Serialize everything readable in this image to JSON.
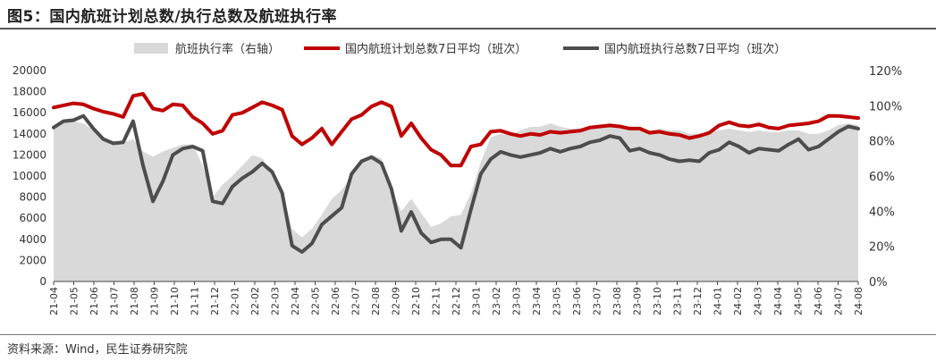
{
  "title": "图5：国内航班计划总数/执行总数及航班执行率",
  "source": "资料来源：Wind，民生证券研究院",
  "colors": {
    "area": "#d9d9d9",
    "plan": "#c00000",
    "exec": "#4d4d4d",
    "axis": "#444444"
  },
  "chart_data": {
    "type": "line",
    "legend_position": "top",
    "grid": false,
    "xlim": [
      "2021-04",
      "2024-08"
    ],
    "ylim_left": [
      0,
      20000
    ],
    "yticks_left": [
      "0",
      "2000",
      "4000",
      "6000",
      "8000",
      "10000",
      "12000",
      "14000",
      "16000",
      "18000",
      "20000"
    ],
    "ylim_right": [
      0,
      1.2
    ],
    "yticks_right": [
      "0%",
      "20%",
      "40%",
      "60%",
      "80%",
      "100%",
      "120%"
    ],
    "xticks": [
      "21-04",
      "21-05",
      "21-06",
      "21-07",
      "21-08",
      "21-09",
      "21-10",
      "21-11",
      "21-12",
      "22-01",
      "22-02",
      "22-03",
      "22-04",
      "22-05",
      "22-06",
      "22-07",
      "22-08",
      "22-09",
      "22-10",
      "22-11",
      "22-12",
      "23-01",
      "23-02",
      "23-03",
      "23-04",
      "23-05",
      "23-06",
      "23-07",
      "23-08",
      "23-09",
      "23-10",
      "23-11",
      "23-12",
      "24-01",
      "24-02",
      "24-03",
      "24-04",
      "24-05",
      "24-06",
      "24-07",
      "24-08"
    ],
    "x": [
      "21-04",
      "21-04b",
      "21-05",
      "21-05b",
      "21-06",
      "21-06b",
      "21-07",
      "21-07b",
      "21-08",
      "21-08b",
      "21-09",
      "21-09b",
      "21-10",
      "21-10b",
      "21-11",
      "21-11b",
      "21-12",
      "21-12b",
      "22-01",
      "22-01b",
      "22-02",
      "22-02b",
      "22-03",
      "22-03b",
      "22-04",
      "22-04b",
      "22-05",
      "22-05b",
      "22-06",
      "22-06b",
      "22-07",
      "22-07b",
      "22-08",
      "22-08b",
      "22-09",
      "22-09b",
      "22-10",
      "22-10b",
      "22-11",
      "22-11b",
      "22-12",
      "22-12b",
      "23-01",
      "23-01b",
      "23-02",
      "23-02b",
      "23-03",
      "23-03b",
      "23-04",
      "23-04b",
      "23-05",
      "23-05b",
      "23-06",
      "23-06b",
      "23-07",
      "23-07b",
      "23-08",
      "23-08b",
      "23-09",
      "23-09b",
      "23-10",
      "23-10b",
      "23-11",
      "23-11b",
      "23-12",
      "23-12b",
      "24-01",
      "24-01b",
      "24-02",
      "24-02b",
      "24-03",
      "24-03b",
      "24-04",
      "24-04b",
      "24-05",
      "24-05b",
      "24-06",
      "24-06b",
      "24-07",
      "24-07b",
      "24-08",
      "24-08b"
    ],
    "series": [
      {
        "name": "航班执行率（右轴）",
        "axis": "right",
        "style": "area",
        "values": [
          0.88,
          0.91,
          0.91,
          0.9,
          0.86,
          0.8,
          0.78,
          0.79,
          0.81,
          0.74,
          0.71,
          0.74,
          0.76,
          0.78,
          0.78,
          0.66,
          0.48,
          0.55,
          0.6,
          0.66,
          0.72,
          0.7,
          0.62,
          0.5,
          0.3,
          0.25,
          0.3,
          0.38,
          0.47,
          0.52,
          0.6,
          0.68,
          0.72,
          0.7,
          0.52,
          0.4,
          0.47,
          0.39,
          0.31,
          0.33,
          0.37,
          0.38,
          0.5,
          0.68,
          0.82,
          0.84,
          0.83,
          0.86,
          0.88,
          0.88,
          0.9,
          0.88,
          0.87,
          0.87,
          0.88,
          0.89,
          0.9,
          0.89,
          0.88,
          0.88,
          0.86,
          0.87,
          0.86,
          0.86,
          0.84,
          0.84,
          0.85,
          0.86,
          0.87,
          0.86,
          0.85,
          0.86,
          0.85,
          0.85,
          0.86,
          0.86,
          0.84,
          0.84,
          0.86,
          0.89,
          0.9,
          0.89
        ]
      },
      {
        "name": "国内航班计划总数7日平均（班次）",
        "axis": "left",
        "style": "line",
        "values": [
          16500,
          16700,
          16900,
          16800,
          16400,
          16100,
          15900,
          15600,
          17600,
          17800,
          16400,
          16200,
          16800,
          16700,
          15600,
          15000,
          14000,
          14300,
          15800,
          16000,
          16500,
          17000,
          16700,
          16300,
          13800,
          13000,
          13600,
          14500,
          13000,
          14200,
          15400,
          15800,
          16600,
          17000,
          16600,
          13800,
          15000,
          13600,
          12500,
          12000,
          11000,
          11000,
          12800,
          13000,
          14200,
          14300,
          14000,
          13800,
          14000,
          13900,
          14200,
          14100,
          14200,
          14300,
          14600,
          14700,
          14800,
          14700,
          14500,
          14500,
          14100,
          14200,
          14000,
          13900,
          13600,
          13800,
          14100,
          14800,
          15100,
          14800,
          14700,
          14900,
          14600,
          14500,
          14800,
          14900,
          15000,
          15200,
          15700,
          15700,
          15600,
          15500
        ]
      },
      {
        "name": "国内航班执行总数7日平均（班次）",
        "axis": "left",
        "style": "line",
        "values": [
          14600,
          15200,
          15300,
          15700,
          14500,
          13500,
          13100,
          13200,
          15200,
          11000,
          7600,
          9500,
          12000,
          12600,
          12800,
          12400,
          7600,
          7400,
          9000,
          9800,
          10400,
          11200,
          10400,
          8400,
          3400,
          2800,
          3600,
          5400,
          6200,
          7000,
          10200,
          11400,
          11800,
          11200,
          8800,
          4800,
          6600,
          4600,
          3700,
          4000,
          4000,
          3200,
          6800,
          10200,
          11600,
          12300,
          12000,
          11800,
          12000,
          12200,
          12600,
          12300,
          12600,
          12800,
          13200,
          13400,
          13800,
          13600,
          12400,
          12600,
          12200,
          12000,
          11600,
          11400,
          11500,
          11400,
          12200,
          12500,
          13200,
          12800,
          12200,
          12600,
          12500,
          12400,
          13000,
          13500,
          12500,
          12800,
          13500,
          14200,
          14700,
          14500
        ]
      }
    ]
  }
}
